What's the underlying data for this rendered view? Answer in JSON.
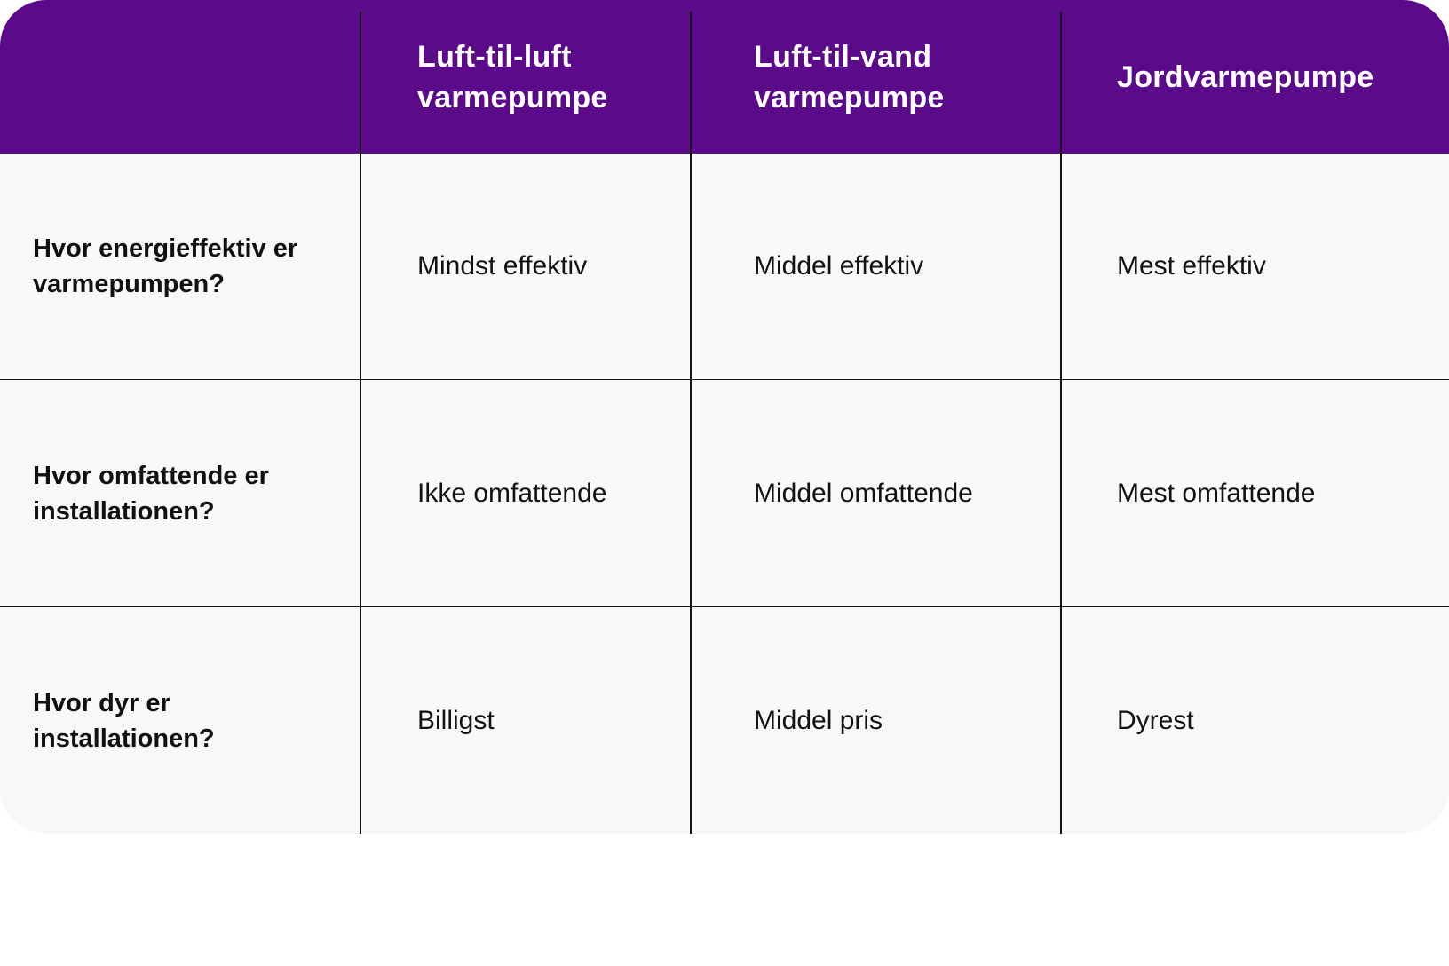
{
  "header": {
    "columns": [
      {
        "line1": "Luft-til-luft",
        "line2": "varmepumpe"
      },
      {
        "line1": "Luft-til-vand",
        "line2": "varmepumpe"
      },
      {
        "line1": "Jordvarmepumpe"
      }
    ]
  },
  "rows": [
    {
      "question_line1": "Hvor energieffektiv er",
      "question_line2": "varmepumpen?",
      "values": [
        "Mindst effektiv",
        "Middel effektiv",
        "Mest effektiv"
      ]
    },
    {
      "question_line1": "Hvor omfattende er",
      "question_line2": "installationen?",
      "values": [
        "Ikke omfattende",
        "Middel omfattende",
        "Mest omfattende"
      ]
    },
    {
      "question_line1": "Hvor dyr er",
      "question_line2": "installationen?",
      "values": [
        "Billigst",
        "Middel pris",
        "Dyrest"
      ]
    }
  ],
  "colors": {
    "header_background": "#5b0a8a",
    "body_background": "#f8f8f8",
    "header_text": "#ffffff",
    "body_text": "#111111",
    "grid_lines": "#141414"
  }
}
